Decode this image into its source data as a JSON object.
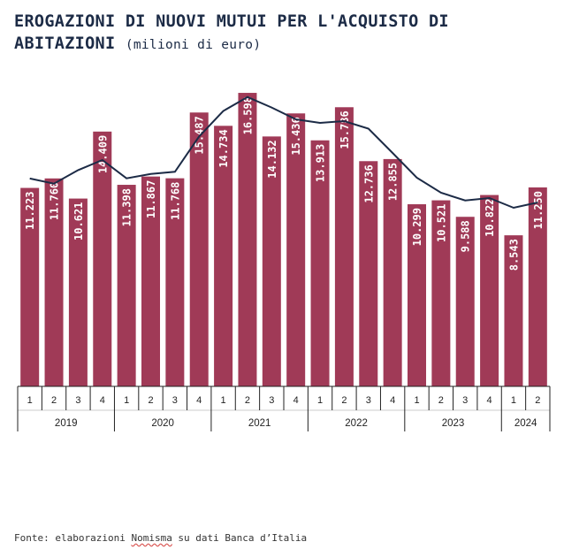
{
  "title": {
    "main": "EROGAZIONI DI NUOVI MUTUI PER L'ACQUISTO DI ABITAZIONI",
    "unit": "(milioni di euro)"
  },
  "source": {
    "prefix": "Fonte: elaborazioni ",
    "brand": "Nomisma",
    "suffix": " su dati Banca d’Italia"
  },
  "colors": {
    "bar": "#a03a57",
    "line": "#1c2b46"
  },
  "chart_data": {
    "type": "bar",
    "title": "EROGAZIONI DI NUOVI MUTUI PER L'ACQUISTO DI ABITAZIONI",
    "ylabel": "",
    "xlabel": "",
    "ylim": [
      0,
      17500
    ],
    "grid": false,
    "legend": "none",
    "categories": [
      "1",
      "2",
      "3",
      "4",
      "1",
      "2",
      "3",
      "4",
      "1",
      "2",
      "3",
      "4",
      "1",
      "2",
      "3",
      "4",
      "1",
      "2",
      "3",
      "4",
      "1",
      "2"
    ],
    "years": [
      {
        "label": "2019",
        "count": 4
      },
      {
        "label": "2020",
        "count": 4
      },
      {
        "label": "2021",
        "count": 4
      },
      {
        "label": "2022",
        "count": 4
      },
      {
        "label": "2023",
        "count": 4
      },
      {
        "label": "2024",
        "count": 2
      }
    ],
    "values": [
      11223,
      11760,
      10621,
      14409,
      11398,
      11867,
      11768,
      15487,
      14734,
      16598,
      14132,
      15436,
      13913,
      15786,
      12736,
      12855,
      10299,
      10521,
      9588,
      10822,
      8543,
      11250
    ],
    "value_labels": [
      "11.223",
      "11.760",
      "10.621",
      "14.409",
      "11.398",
      "11.867",
      "11.768",
      "15.487",
      "14.734",
      "16.598",
      "14.132",
      "15.436",
      "13.913",
      "15.786",
      "12.736",
      "12.855",
      "10.299",
      "10.521",
      "9.588",
      "10.822",
      "8.543",
      "11.250"
    ],
    "series": [
      {
        "type": "line",
        "values": [
          11753,
          11467,
          12231,
          12800,
          11766,
          12009,
          12133,
          14132,
          15577,
          16360,
          15768,
          15100,
          14900,
          15000,
          14573,
          13200,
          11800,
          10950,
          10517,
          10650,
          10100,
          10400
        ]
      }
    ]
  }
}
